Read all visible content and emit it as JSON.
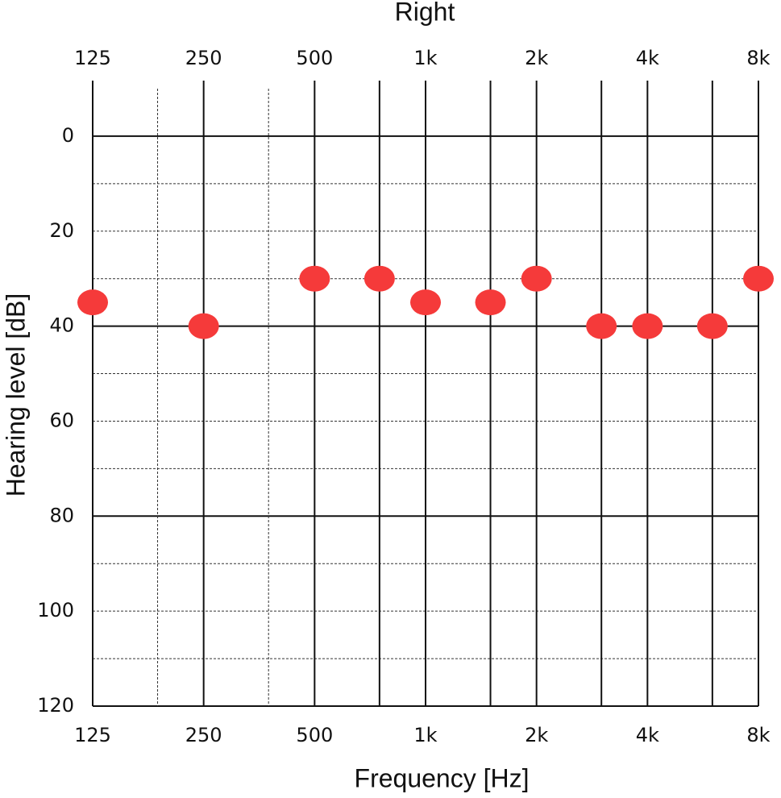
{
  "chart_data": {
    "type": "scatter",
    "title": "Right",
    "x_label": "Frequency [Hz]",
    "y_label": "Hearing level [dB]",
    "x": [
      125,
      250,
      500,
      750,
      1000,
      1500,
      2000,
      3000,
      4000,
      6000,
      8000
    ],
    "series": [
      {
        "color": "#f53a3a",
        "values": [
          35,
          40,
          30,
          30,
          35,
          35,
          30,
          40,
          40,
          40,
          30
        ]
      }
    ],
    "xlim": [
      125,
      8000
    ],
    "xscale": "log",
    "xticks": [
      125,
      250,
      500,
      {
        "value": 1000,
        "label": "1k"
      },
      {
        "value": 2000,
        "label": "2k"
      },
      {
        "value": 4000,
        "label": "4k"
      },
      {
        "value": 8000,
        "label": "8k"
      }
    ],
    "xminor_solid": [
      750,
      1500,
      3000,
      6000
    ],
    "xminor_dashed": [
      187.5,
      375
    ],
    "ylim": [
      -10,
      120
    ],
    "yreversed": true,
    "yticks": [
      0,
      20,
      40,
      60,
      80,
      100,
      120
    ],
    "yminor": [
      10,
      30,
      50,
      70,
      90,
      110
    ],
    "ysolid": [
      0,
      40,
      80,
      120
    ],
    "grid": true
  }
}
